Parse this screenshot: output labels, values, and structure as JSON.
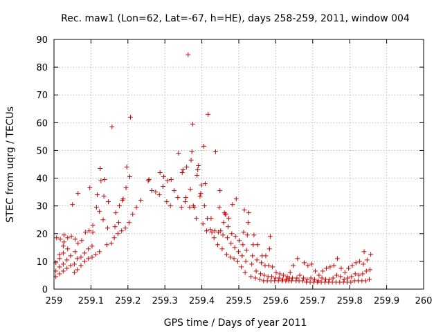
{
  "chart_data": {
    "type": "scatter",
    "title": "Rec. maw1 (Lon=62, Lat=-67, h=HE), days 258-259, 2011, window 004",
    "xlabel": "GPS time / Days of year 2011",
    "ylabel": "STEC from uqrg / TECUs",
    "xlim": [
      259,
      260
    ],
    "ylim": [
      0,
      90
    ],
    "x_ticks": [
      "259",
      "259.1",
      "259.2",
      "259.3",
      "259.4",
      "259.5",
      "259.6",
      "259.7",
      "259.8",
      "259.9",
      "260"
    ],
    "y_ticks": [
      "0",
      "10",
      "20",
      "30",
      "40",
      "50",
      "60",
      "70",
      "80",
      "90"
    ],
    "grid": true,
    "marker": "+",
    "color": "#cc0000",
    "series": [
      {
        "name": "STEC",
        "points": [
          [
            259.005,
            4.5
          ],
          [
            259.005,
            6.5
          ],
          [
            259.005,
            9.5
          ],
          [
            259.007,
            18.5
          ],
          [
            259.015,
            5.5
          ],
          [
            259.015,
            8.0
          ],
          [
            259.015,
            11.0
          ],
          [
            259.015,
            12.5
          ],
          [
            259.017,
            18.0
          ],
          [
            259.025,
            6.5
          ],
          [
            259.025,
            9.0
          ],
          [
            259.025,
            13.0
          ],
          [
            259.025,
            15.5
          ],
          [
            259.027,
            17.0
          ],
          [
            259.027,
            19.5
          ],
          [
            259.035,
            7.5
          ],
          [
            259.035,
            10.5
          ],
          [
            259.037,
            14.5
          ],
          [
            259.037,
            18.5
          ],
          [
            259.045,
            8.5
          ],
          [
            259.045,
            12.0
          ],
          [
            259.047,
            19.0
          ],
          [
            259.05,
            30.5
          ],
          [
            259.055,
            6.0
          ],
          [
            259.055,
            9.0
          ],
          [
            259.057,
            13.5
          ],
          [
            259.057,
            18.0
          ],
          [
            259.063,
            7.0
          ],
          [
            259.063,
            11.0
          ],
          [
            259.065,
            16.5
          ],
          [
            259.065,
            34.5
          ],
          [
            259.073,
            8.5
          ],
          [
            259.073,
            11.5
          ],
          [
            259.075,
            17.5
          ],
          [
            259.083,
            10.0
          ],
          [
            259.083,
            13.0
          ],
          [
            259.085,
            20.5
          ],
          [
            259.093,
            11.0
          ],
          [
            259.093,
            14.5
          ],
          [
            259.095,
            21.0
          ],
          [
            259.097,
            36.5
          ],
          [
            259.103,
            11.5
          ],
          [
            259.103,
            15.5
          ],
          [
            259.105,
            20.5
          ],
          [
            259.105,
            23.0
          ],
          [
            259.113,
            12.5
          ],
          [
            259.115,
            29.5
          ],
          [
            259.117,
            34.0
          ],
          [
            259.123,
            13.5
          ],
          [
            259.123,
            28.0
          ],
          [
            259.125,
            43.5
          ],
          [
            259.127,
            39.0
          ],
          [
            259.133,
            25.0
          ],
          [
            259.135,
            33.5
          ],
          [
            259.137,
            39.5
          ],
          [
            259.143,
            16.0
          ],
          [
            259.145,
            22.0
          ],
          [
            259.147,
            31.5
          ],
          [
            259.155,
            16.5
          ],
          [
            259.157,
            58.5
          ],
          [
            259.163,
            18.5
          ],
          [
            259.165,
            22.5
          ],
          [
            259.167,
            27.5
          ],
          [
            259.173,
            20.0
          ],
          [
            259.175,
            24.0
          ],
          [
            259.177,
            30.0
          ],
          [
            259.183,
            21.0
          ],
          [
            259.185,
            32.0
          ],
          [
            259.187,
            32.5
          ],
          [
            259.193,
            22.0
          ],
          [
            259.195,
            36.5
          ],
          [
            259.197,
            44.0
          ],
          [
            259.203,
            24.0
          ],
          [
            259.205,
            40.5
          ],
          [
            259.207,
            62.0
          ],
          [
            259.213,
            27.0
          ],
          [
            259.223,
            29.5
          ],
          [
            259.235,
            32.0
          ],
          [
            259.255,
            39.0
          ],
          [
            259.257,
            39.5
          ],
          [
            259.265,
            35.5
          ],
          [
            259.275,
            35.0
          ],
          [
            259.285,
            34.0
          ],
          [
            259.287,
            42.0
          ],
          [
            259.295,
            37.0
          ],
          [
            259.297,
            40.5
          ],
          [
            259.305,
            31.5
          ],
          [
            259.307,
            39.0
          ],
          [
            259.315,
            30.0
          ],
          [
            259.317,
            39.5
          ],
          [
            259.325,
            35.5
          ],
          [
            259.335,
            33.0
          ],
          [
            259.337,
            49.0
          ],
          [
            259.345,
            29.5
          ],
          [
            259.347,
            42.0
          ],
          [
            259.349,
            43.0
          ],
          [
            259.355,
            31.5
          ],
          [
            259.357,
            33.0
          ],
          [
            259.359,
            44.0
          ],
          [
            259.363,
            84.5
          ],
          [
            259.367,
            29.5
          ],
          [
            259.369,
            36.0
          ],
          [
            259.371,
            46.5
          ],
          [
            259.373,
            49.5
          ],
          [
            259.375,
            59.5
          ],
          [
            259.377,
            30.0
          ],
          [
            259.379,
            29.5
          ],
          [
            259.385,
            25.5
          ],
          [
            259.387,
            41.0
          ],
          [
            259.389,
            43.0
          ],
          [
            259.391,
            44.5
          ],
          [
            259.395,
            33.5
          ],
          [
            259.397,
            34.5
          ],
          [
            259.399,
            37.5
          ],
          [
            259.403,
            23.5
          ],
          [
            259.405,
            51.5
          ],
          [
            259.407,
            30.0
          ],
          [
            259.409,
            38.0
          ],
          [
            259.413,
            21.0
          ],
          [
            259.415,
            25.5
          ],
          [
            259.417,
            63.0
          ],
          [
            259.423,
            21.5
          ],
          [
            259.425,
            25.5
          ],
          [
            259.427,
            20.5
          ],
          [
            259.433,
            18.5
          ],
          [
            259.435,
            21.0
          ],
          [
            259.437,
            49.5
          ],
          [
            259.443,
            16.0
          ],
          [
            259.445,
            20.5
          ],
          [
            259.447,
            29.5
          ],
          [
            259.449,
            35.5
          ],
          [
            259.451,
            21.0
          ],
          [
            259.455,
            14.5
          ],
          [
            259.457,
            19.5
          ],
          [
            259.459,
            24.0
          ],
          [
            259.461,
            27.5
          ],
          [
            259.463,
            27.0
          ],
          [
            259.465,
            27.0
          ],
          [
            259.467,
            12.5
          ],
          [
            259.469,
            18.5
          ],
          [
            259.471,
            22.5
          ],
          [
            259.473,
            25.5
          ],
          [
            259.477,
            11.5
          ],
          [
            259.479,
            16.5
          ],
          [
            259.481,
            20.0
          ],
          [
            259.483,
            30.5
          ],
          [
            259.487,
            11.0
          ],
          [
            259.489,
            15.0
          ],
          [
            259.491,
            19.0
          ],
          [
            259.493,
            32.5
          ],
          [
            259.497,
            10.0
          ],
          [
            259.499,
            13.5
          ],
          [
            259.501,
            17.5
          ],
          [
            259.507,
            8.0
          ],
          [
            259.509,
            12.0
          ],
          [
            259.511,
            16.0
          ],
          [
            259.513,
            20.5
          ],
          [
            259.515,
            28.5
          ],
          [
            259.517,
            6.0
          ],
          [
            259.519,
            10.0
          ],
          [
            259.521,
            14.0
          ],
          [
            259.523,
            19.5
          ],
          [
            259.525,
            24.0
          ],
          [
            259.527,
            27.5
          ],
          [
            259.533,
            4.5
          ],
          [
            259.535,
            9.0
          ],
          [
            259.537,
            12.0
          ],
          [
            259.539,
            16.0
          ],
          [
            259.541,
            19.5
          ],
          [
            259.545,
            4.0
          ],
          [
            259.547,
            6.5
          ],
          [
            259.549,
            10.5
          ],
          [
            259.551,
            16.0
          ],
          [
            259.557,
            3.5
          ],
          [
            259.559,
            5.5
          ],
          [
            259.561,
            9.5
          ],
          [
            259.563,
            12.0
          ],
          [
            259.567,
            3.0
          ],
          [
            259.569,
            5.0
          ],
          [
            259.571,
            8.5
          ],
          [
            259.573,
            12.0
          ],
          [
            259.577,
            3.0
          ],
          [
            259.579,
            4.5
          ],
          [
            259.581,
            8.5
          ],
          [
            259.583,
            14.5
          ],
          [
            259.585,
            19.0
          ],
          [
            259.587,
            3.0
          ],
          [
            259.589,
            4.5
          ],
          [
            259.591,
            8.0
          ],
          [
            259.597,
            3.0
          ],
          [
            259.599,
            4.0
          ],
          [
            259.601,
            6.0
          ],
          [
            259.607,
            3.0
          ],
          [
            259.609,
            4.0
          ],
          [
            259.611,
            5.5
          ],
          [
            259.617,
            3.0
          ],
          [
            259.619,
            3.5
          ],
          [
            259.621,
            5.0
          ],
          [
            259.627,
            3.0
          ],
          [
            259.629,
            3.5
          ],
          [
            259.631,
            4.5
          ],
          [
            259.635,
            3.0
          ],
          [
            259.637,
            4.0
          ],
          [
            259.639,
            6.0
          ],
          [
            259.643,
            3.0
          ],
          [
            259.645,
            4.0
          ],
          [
            259.647,
            8.5
          ],
          [
            259.655,
            3.0
          ],
          [
            259.657,
            4.0
          ],
          [
            259.659,
            11.0
          ],
          [
            259.663,
            3.0
          ],
          [
            259.665,
            5.0
          ],
          [
            259.673,
            3.0
          ],
          [
            259.675,
            4.0
          ],
          [
            259.677,
            9.5
          ],
          [
            259.683,
            2.5
          ],
          [
            259.685,
            3.5
          ],
          [
            259.687,
            8.5
          ],
          [
            259.693,
            2.5
          ],
          [
            259.695,
            4.0
          ],
          [
            259.697,
            9.0
          ],
          [
            259.703,
            2.5
          ],
          [
            259.705,
            3.5
          ],
          [
            259.707,
            6.5
          ],
          [
            259.713,
            2.5
          ],
          [
            259.715,
            3.0
          ],
          [
            259.717,
            5.0
          ],
          [
            259.723,
            2.5
          ],
          [
            259.725,
            4.0
          ],
          [
            259.727,
            6.5
          ],
          [
            259.733,
            2.5
          ],
          [
            259.735,
            3.5
          ],
          [
            259.737,
            7.5
          ],
          [
            259.743,
            2.5
          ],
          [
            259.745,
            3.5
          ],
          [
            259.747,
            8.0
          ],
          [
            259.753,
            2.5
          ],
          [
            259.755,
            4.0
          ],
          [
            259.757,
            8.5
          ],
          [
            259.763,
            2.5
          ],
          [
            259.765,
            5.0
          ],
          [
            259.767,
            11.0
          ],
          [
            259.773,
            2.5
          ],
          [
            259.775,
            4.5
          ],
          [
            259.777,
            7.5
          ],
          [
            259.783,
            2.5
          ],
          [
            259.785,
            3.5
          ],
          [
            259.787,
            6.0
          ],
          [
            259.793,
            2.5
          ],
          [
            259.795,
            4.0
          ],
          [
            259.797,
            7.5
          ],
          [
            259.803,
            2.5
          ],
          [
            259.805,
            4.5
          ],
          [
            259.807,
            8.5
          ],
          [
            259.813,
            3.0
          ],
          [
            259.815,
            5.5
          ],
          [
            259.817,
            9.5
          ],
          [
            259.823,
            3.0
          ],
          [
            259.825,
            5.0
          ],
          [
            259.827,
            10.0
          ],
          [
            259.833,
            3.0
          ],
          [
            259.835,
            5.5
          ],
          [
            259.837,
            9.0
          ],
          [
            259.839,
            13.5
          ],
          [
            259.843,
            3.0
          ],
          [
            259.845,
            6.5
          ],
          [
            259.847,
            10.5
          ],
          [
            259.853,
            3.5
          ],
          [
            259.855,
            7.0
          ],
          [
            259.857,
            12.5
          ]
        ]
      }
    ]
  }
}
